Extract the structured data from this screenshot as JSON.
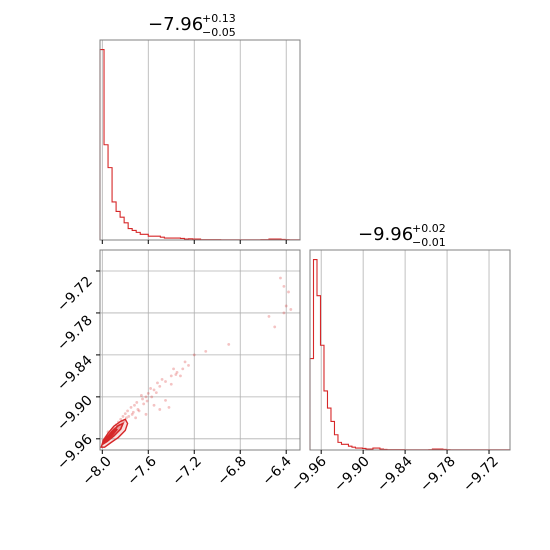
{
  "chart_data": {
    "type": "corner",
    "parameters": [
      {
        "title": {
          "value": "−7.96",
          "plus": "+0.13",
          "minus": "−0.05"
        },
        "xlim": [
          -8.02,
          -6.28
        ],
        "ticks": [
          -8.0,
          -7.6,
          -7.2,
          -6.8,
          -6.4
        ],
        "tick_labels": [
          "−8.0",
          "−7.6",
          "−7.2",
          "−6.8",
          "−6.4"
        ],
        "histogram": {
          "edges": [
            -8.02,
            -7.985,
            -7.95,
            -7.915,
            -7.88,
            -7.845,
            -7.81,
            -7.775,
            -7.74,
            -7.705,
            -7.67,
            -7.635,
            -7.6,
            -7.565,
            -7.53,
            -7.495,
            -7.46,
            -7.425,
            -7.39,
            -7.355,
            -7.32,
            -7.285,
            -7.25,
            -7.215,
            -7.18,
            -7.145,
            -7.11,
            -7.075,
            -7.04,
            -7.005,
            -6.97,
            -6.935,
            -6.9,
            -6.865,
            -6.83,
            -6.795,
            -6.76,
            -6.725,
            -6.69,
            -6.655,
            -6.62,
            -6.585,
            -6.55,
            -6.515,
            -6.48,
            -6.445,
            -6.41,
            -6.375,
            -6.34,
            -6.305,
            -6.28
          ],
          "counts": [
            100,
            50,
            38,
            20,
            15,
            12,
            9,
            6,
            5,
            4,
            3,
            3,
            2,
            2,
            2,
            1.5,
            1,
            1,
            1,
            1,
            0.8,
            0.5,
            0.6,
            0.5,
            0.5,
            0.2,
            0.2,
            0.2,
            0.2,
            0.2,
            0.1,
            0.1,
            0.1,
            0.1,
            0.1,
            0.1,
            0.1,
            0.1,
            0.1,
            0.1,
            0.2,
            0.2,
            0.5,
            0.5,
            0.5,
            0.3,
            0.2,
            0.1,
            0.1,
            0.1
          ]
        }
      },
      {
        "title": {
          "value": "−9.96",
          "plus": "+0.02",
          "minus": "−0.01"
        },
        "xlim": [
          -9.976,
          -9.69
        ],
        "ticks": [
          -9.96,
          -9.9,
          -9.84,
          -9.78,
          -9.72
        ],
        "tick_labels": [
          "−9.96",
          "−9.90",
          "−9.84",
          "−9.78",
          "−9.72"
        ],
        "histogram": {
          "edges": [
            -9.976,
            -9.971,
            -9.966,
            -9.961,
            -9.956,
            -9.951,
            -9.946,
            -9.941,
            -9.936,
            -9.931,
            -9.926,
            -9.921,
            -9.916,
            -9.911,
            -9.906,
            -9.901,
            -9.896,
            -9.891,
            -9.886,
            -9.881,
            -9.876,
            -9.871,
            -9.866,
            -9.861,
            -9.856,
            -9.851,
            -9.846,
            -9.841,
            -9.836,
            -9.831,
            -9.826,
            -9.821,
            -9.816,
            -9.811,
            -9.806,
            -9.801,
            -9.796,
            -9.791,
            -9.786,
            -9.781,
            -9.776,
            -9.771,
            -9.766,
            -9.761,
            -9.756,
            -9.751,
            -9.746,
            -9.741,
            -9.736,
            -9.731,
            -9.69
          ],
          "counts": [
            48,
            100,
            81,
            55,
            31,
            22,
            15,
            8,
            4,
            3,
            3,
            2,
            1.5,
            1,
            1,
            0.8,
            0.5,
            0.5,
            1,
            1,
            0.5,
            0.3,
            0.2,
            0.2,
            0.2,
            0.2,
            0.2,
            0.1,
            0.1,
            0.1,
            0.1,
            0.1,
            0.1,
            0.1,
            0.2,
            0.5,
            0.5,
            0.5,
            0.3,
            0.2,
            0.1,
            0.1,
            0.1,
            0.1,
            0.1,
            0.1,
            0.1,
            0.1,
            0.1,
            0.1
          ]
        }
      }
    ],
    "scatter": {
      "x": [
        -6.45,
        -6.42,
        -6.38,
        -6.4,
        -6.42,
        -6.55,
        -6.5,
        -6.36,
        -6.9,
        -7.1,
        -7.2,
        -7.25,
        -7.3,
        -7.35,
        -7.4,
        -7.45,
        -7.5,
        -7.55,
        -7.6,
        -7.62,
        -7.65,
        -7.7,
        -7.72,
        -7.75,
        -7.78,
        -7.8,
        -7.82,
        -7.84,
        -7.86,
        -7.88,
        -7.9,
        -7.92,
        -7.94,
        -7.96,
        -7.98,
        -7.66,
        -7.58,
        -7.52,
        -7.48,
        -7.42,
        -7.38,
        -7.32,
        -7.28,
        -7.45,
        -7.55,
        -7.68,
        -7.74,
        -7.79,
        -7.83,
        -7.87,
        -7.91,
        -7.95,
        -7.97,
        -7.99,
        -7.93,
        -7.89,
        -7.85,
        -7.81,
        -7.77,
        -7.73,
        -7.69,
        -7.64,
        -7.61,
        -7.57,
        -7.53,
        -7.4,
        -7.36,
        -7.5,
        -7.62,
        -7.71
      ],
      "y": [
        -9.73,
        -9.742,
        -9.75,
        -9.77,
        -9.78,
        -9.785,
        -9.8,
        -9.775,
        -9.825,
        -9.835,
        -9.84,
        -9.855,
        -9.86,
        -9.865,
        -9.87,
        -9.878,
        -9.885,
        -9.89,
        -9.895,
        -9.9,
        -9.903,
        -9.908,
        -9.912,
        -9.915,
        -9.92,
        -9.924,
        -9.928,
        -9.932,
        -9.936,
        -9.94,
        -9.944,
        -9.948,
        -9.952,
        -9.956,
        -9.96,
        -9.898,
        -9.888,
        -9.88,
        -9.875,
        -9.915,
        -9.86,
        -9.87,
        -9.85,
        -9.905,
        -9.912,
        -9.92,
        -9.925,
        -9.93,
        -9.935,
        -9.942,
        -9.946,
        -9.95,
        -9.958,
        -9.962,
        -9.954,
        -9.948,
        -9.94,
        -9.934,
        -9.928,
        -9.922,
        -9.918,
        -9.91,
        -9.906,
        -9.9,
        -9.894,
        -9.882,
        -9.868,
        -9.918,
        -9.925,
        -9.93
      ]
    },
    "contours": [
      {
        "level": "outer",
        "x": [
          -8.01,
          -7.99,
          -7.95,
          -7.9,
          -7.84,
          -7.8,
          -7.78,
          -7.8,
          -7.86,
          -7.93,
          -7.98,
          -8.01
        ],
        "y": [
          -9.972,
          -9.962,
          -9.952,
          -9.942,
          -9.935,
          -9.932,
          -9.938,
          -9.948,
          -9.958,
          -9.966,
          -9.972,
          -9.972
        ]
      },
      {
        "level": "middle",
        "x": [
          -8.0,
          -7.97,
          -7.92,
          -7.86,
          -7.82,
          -7.84,
          -7.9,
          -7.96,
          -8.0
        ],
        "y": [
          -9.968,
          -9.96,
          -9.95,
          -9.941,
          -9.938,
          -9.946,
          -9.956,
          -9.964,
          -9.968
        ]
      },
      {
        "level": "inner",
        "x": [
          -7.99,
          -7.95,
          -7.9,
          -7.87,
          -7.91,
          -7.96,
          -7.99
        ],
        "y": [
          -9.964,
          -9.957,
          -9.949,
          -9.946,
          -9.954,
          -9.962,
          -9.964
        ]
      }
    ],
    "yaxis_ticks": [
      -9.72,
      -9.78,
      -9.84,
      -9.9,
      -9.96
    ],
    "yaxis_tick_labels": [
      "−9.72",
      "−9.78",
      "−9.84",
      "−9.90",
      "−9.96"
    ],
    "grid": true,
    "colors": {
      "line": "#d62728",
      "fill": "#d62728",
      "grid": "#b0b0b0",
      "frame": "#808080"
    }
  }
}
